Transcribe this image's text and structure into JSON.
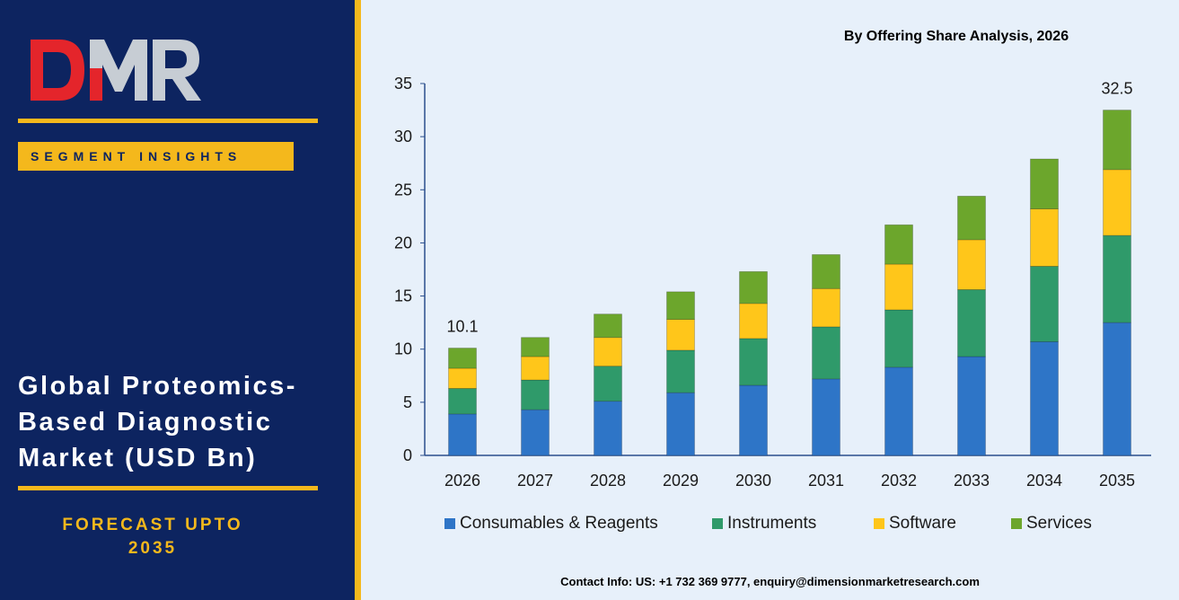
{
  "brand": {
    "logo_text": "DMR",
    "colors": {
      "navy": "#0d2460",
      "gold": "#f4b81c",
      "logo_red": "#e4252b",
      "logo_grey": "#c7cdd4"
    }
  },
  "sidebar": {
    "badge": "SEGMENT INSIGHTS",
    "title_lines": [
      "Global Proteomics-",
      "Based Diagnostic",
      "Market (USD Bn)"
    ],
    "forecast_lines": [
      "FORECAST UPTO",
      "2035"
    ]
  },
  "footer": {
    "contact": "Contact Info: US: +1 732 369 9777, enquiry@dimensionmarketresearch.com"
  },
  "chart_data": {
    "type": "bar",
    "stacked": true,
    "title": "By Offering Share Analysis, 2026",
    "categories": [
      "2026",
      "2027",
      "2028",
      "2029",
      "2030",
      "2031",
      "2032",
      "2033",
      "2034",
      "2035"
    ],
    "series": [
      {
        "name": "Consumables & Reagents",
        "color": "#2e75c7",
        "values": [
          3.9,
          4.3,
          5.1,
          5.9,
          6.6,
          7.2,
          8.3,
          9.3,
          10.7,
          12.5
        ]
      },
      {
        "name": "Instruments",
        "color": "#2f9a6a",
        "values": [
          2.4,
          2.8,
          3.3,
          4.0,
          4.4,
          4.9,
          5.4,
          6.3,
          7.1,
          8.2
        ]
      },
      {
        "name": "Software",
        "color": "#ffc61a",
        "values": [
          1.9,
          2.2,
          2.7,
          2.9,
          3.3,
          3.6,
          4.3,
          4.7,
          5.4,
          6.2
        ]
      },
      {
        "name": "Services",
        "color": "#6ca62c",
        "values": [
          1.9,
          1.8,
          2.2,
          2.6,
          3.0,
          3.2,
          3.7,
          4.1,
          4.7,
          5.6
        ]
      }
    ],
    "totals_labels": {
      "2026": "10.1",
      "2035": "32.5"
    },
    "ylim": [
      0,
      35
    ],
    "yticks": [
      0,
      5,
      10,
      15,
      20,
      25,
      30,
      35
    ],
    "grid": false,
    "legend_position": "bottom"
  }
}
